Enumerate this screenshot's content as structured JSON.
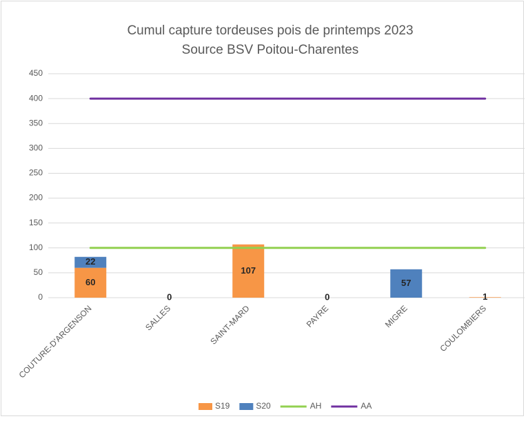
{
  "chart_data": {
    "type": "bar",
    "stacked": true,
    "title": "Cumul capture tordeuses pois de printemps 2023",
    "subtitle": "Source BSV Poitou-Charentes",
    "categories": [
      "COUTURE-D'ARGENSON",
      "SALLES",
      "SAINT-MARD",
      "PAYRE",
      "MIGRE",
      "COULOMBIERS"
    ],
    "series": [
      {
        "name": "S19",
        "type": "bar",
        "color": "#f79646",
        "values": [
          60,
          0,
          107,
          0,
          null,
          1
        ]
      },
      {
        "name": "S20",
        "type": "bar",
        "color": "#4f81bd",
        "values": [
          22,
          null,
          null,
          null,
          57,
          null
        ]
      },
      {
        "name": "AH",
        "type": "line",
        "color": "#92d050",
        "values": [
          100,
          100,
          100,
          100,
          100,
          100
        ]
      },
      {
        "name": "AA",
        "type": "line",
        "color": "#7030a0",
        "values": [
          400,
          400,
          400,
          400,
          400,
          400
        ]
      }
    ],
    "ylim": [
      0,
      450
    ],
    "yticks": [
      0,
      50,
      100,
      150,
      200,
      250,
      300,
      350,
      400,
      450
    ],
    "grid": true,
    "legend": "bottom"
  }
}
